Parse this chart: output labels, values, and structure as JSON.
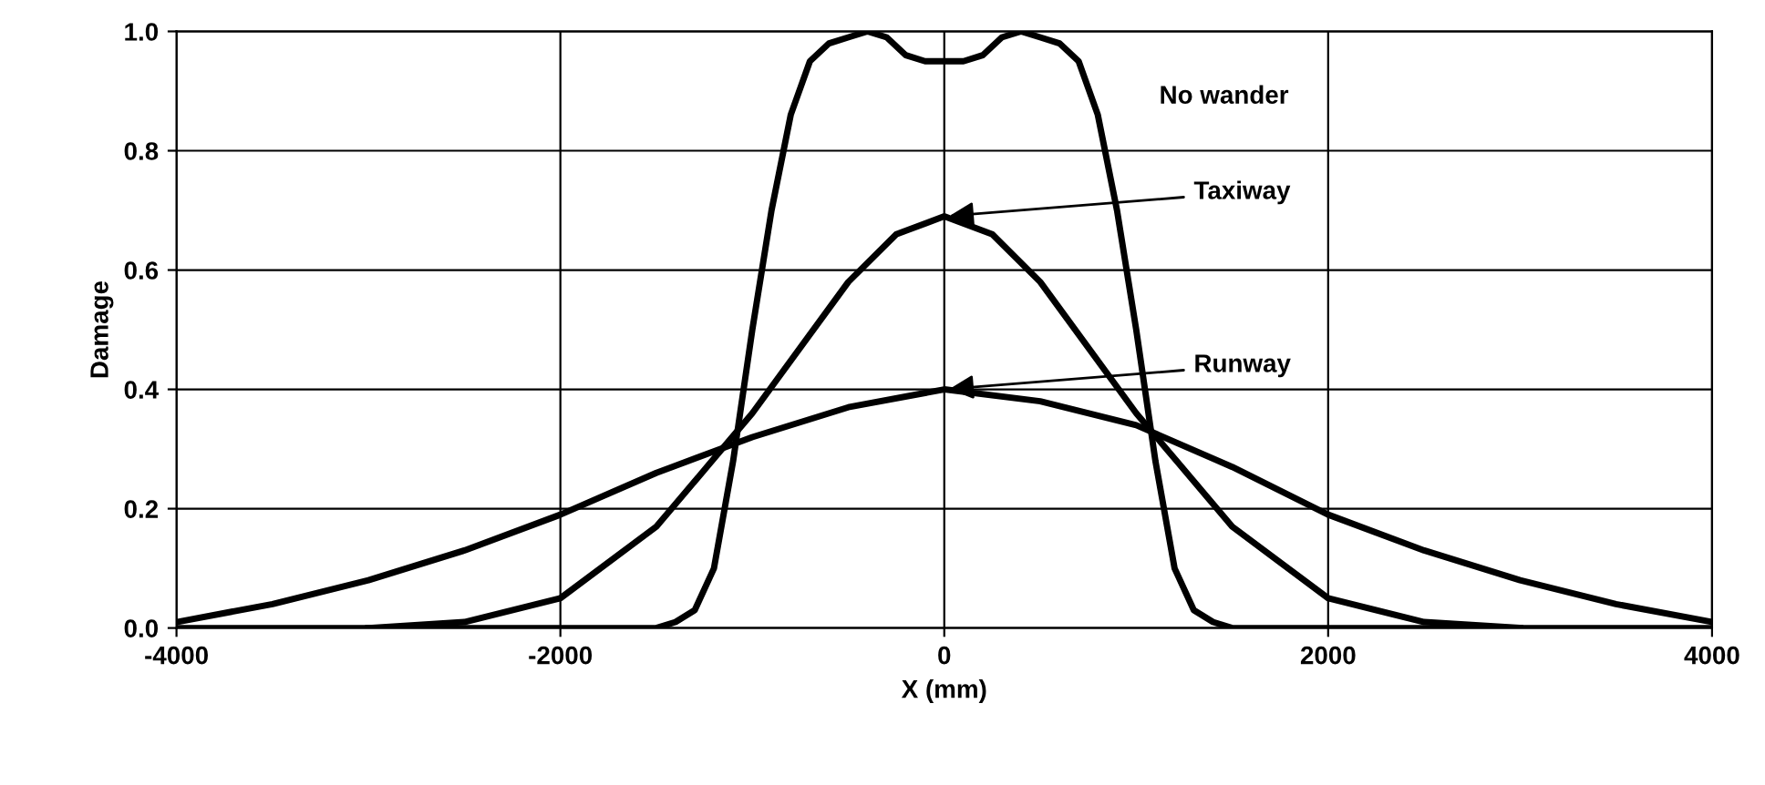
{
  "chart_data": {
    "type": "line",
    "xlabel": "X (mm)",
    "ylabel": "Damage",
    "xlim": [
      -4000,
      4000
    ],
    "ylim": [
      0,
      1
    ],
    "xticks": [
      -4000,
      -2000,
      0,
      2000,
      4000
    ],
    "yticks": [
      {
        "value": 0,
        "label": "0.0"
      },
      {
        "value": 0.2,
        "label": "0.2"
      },
      {
        "value": 0.4,
        "label": "0.4"
      },
      {
        "value": 0.6,
        "label": "0.6"
      },
      {
        "value": 0.8,
        "label": "0.8"
      },
      {
        "value": 1,
        "label": "1.0"
      }
    ],
    "grid": true,
    "marker": "none",
    "line_style": "solid",
    "series": [
      {
        "color": "#000000",
        "x": [
          -4000,
          -1500,
          -1400,
          -1300,
          -1200,
          -1100,
          -1000,
          -900,
          -800,
          -700,
          -600,
          -500,
          -400,
          -300,
          -200,
          -100,
          0,
          100,
          200,
          300,
          400,
          500,
          600,
          700,
          800,
          900,
          1000,
          1100,
          1200,
          1300,
          1400,
          1500,
          4000
        ],
        "values": [
          0,
          0,
          0.01,
          0.03,
          0.1,
          0.28,
          0.5,
          0.7,
          0.86,
          0.95,
          0.98,
          0.99,
          1.0,
          0.99,
          0.96,
          0.95,
          0.95,
          0.95,
          0.96,
          0.99,
          1.0,
          0.99,
          0.98,
          0.95,
          0.86,
          0.7,
          0.5,
          0.28,
          0.1,
          0.03,
          0.01,
          0,
          0
        ]
      },
      {
        "color": "#000000",
        "x": [
          -3000,
          -2500,
          -2000,
          -1500,
          -1000,
          -500,
          -250,
          0,
          250,
          500,
          1000,
          1500,
          2000,
          2500,
          3000
        ],
        "values": [
          0,
          0.01,
          0.05,
          0.17,
          0.36,
          0.58,
          0.66,
          0.69,
          0.66,
          0.58,
          0.36,
          0.17,
          0.05,
          0.01,
          0
        ]
      },
      {
        "color": "#000000",
        "x": [
          -4000,
          -3500,
          -3000,
          -2500,
          -2000,
          -1500,
          -1000,
          -500,
          0,
          500,
          1000,
          1500,
          2000,
          2500,
          3000,
          3500,
          4000
        ],
        "values": [
          0.01,
          0.04,
          0.08,
          0.13,
          0.19,
          0.26,
          0.32,
          0.37,
          0.4,
          0.38,
          0.34,
          0.27,
          0.19,
          0.13,
          0.08,
          0.04,
          0.01
        ]
      }
    ],
    "annotations": [
      "No wander",
      {
        "text": "Taxiway",
        "x": 0,
        "y": 0.69
      },
      {
        "text": "Runway",
        "x": 0,
        "y": 0.4
      }
    ]
  }
}
